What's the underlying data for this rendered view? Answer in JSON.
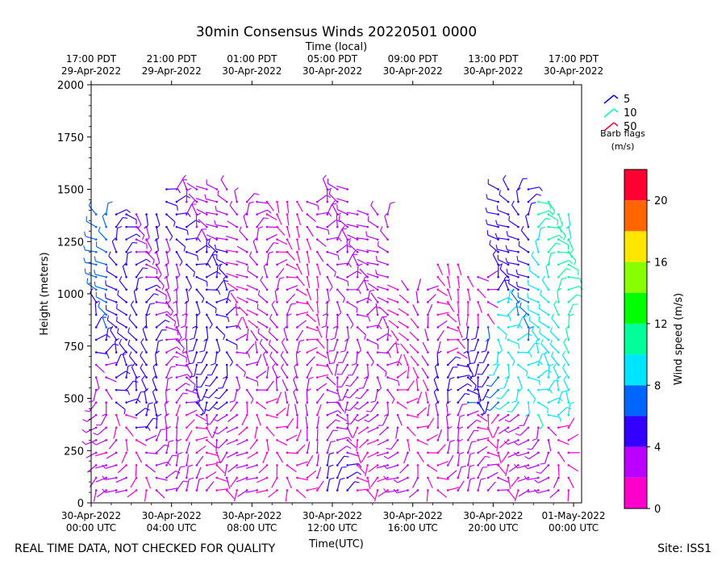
{
  "chart_data": {
    "type": "wind-barb",
    "title": "30min Consensus Winds 20220501 0000",
    "xlabel": "Time(UTC)",
    "top_xlabel": "Time (local)",
    "ylabel": "Height (meters)",
    "x_range_hours_utc": [
      0,
      24.4
    ],
    "ylim": [
      0,
      2000
    ],
    "y_ticks": [
      0,
      250,
      500,
      750,
      1000,
      1250,
      1500,
      1750,
      2000
    ],
    "x_ticks": [
      {
        "hour": 0,
        "line1": "30-Apr-2022",
        "line2": "00:00 UTC"
      },
      {
        "hour": 4,
        "line1": "30-Apr-2022",
        "line2": "04:00 UTC"
      },
      {
        "hour": 8,
        "line1": "30-Apr-2022",
        "line2": "08:00 UTC"
      },
      {
        "hour": 12,
        "line1": "30-Apr-2022",
        "line2": "12:00 UTC"
      },
      {
        "hour": 16,
        "line1": "30-Apr-2022",
        "line2": "16:00 UTC"
      },
      {
        "hour": 20,
        "line1": "30-Apr-2022",
        "line2": "20:00 UTC"
      },
      {
        "hour": 24,
        "line1": "01-May-2022",
        "line2": "00:00 UTC"
      }
    ],
    "top_ticks": [
      {
        "hour": 0,
        "line1": "17:00 PDT",
        "line2": "29-Apr-2022"
      },
      {
        "hour": 4,
        "line1": "21:00 PDT",
        "line2": "29-Apr-2022"
      },
      {
        "hour": 8,
        "line1": "01:00 PDT",
        "line2": "30-Apr-2022"
      },
      {
        "hour": 12,
        "line1": "05:00 PDT",
        "line2": "30-Apr-2022"
      },
      {
        "hour": 16,
        "line1": "09:00 PDT",
        "line2": "30-Apr-2022"
      },
      {
        "hour": 20,
        "line1": "13:00 PDT",
        "line2": "30-Apr-2022"
      },
      {
        "hour": 24,
        "line1": "17:00 PDT",
        "line2": "30-Apr-2022"
      }
    ],
    "barb_legend": {
      "title_line1": "Barb flags",
      "title_line2": "(m/s)",
      "items": [
        {
          "label": "5",
          "color": "#0000ff"
        },
        {
          "label": "10",
          "color": "#00ffaa"
        },
        {
          "label": "50",
          "color": "#ff0033"
        }
      ]
    },
    "colorbar": {
      "label": "Wind speed (m/s)",
      "min": 0,
      "max": 22,
      "ticks": [
        0,
        4,
        8,
        12,
        16,
        20
      ],
      "bins": [
        {
          "from": 0,
          "to": 2,
          "color": "#ff00cc"
        },
        {
          "from": 2,
          "to": 4,
          "color": "#bb00ff"
        },
        {
          "from": 4,
          "to": 6,
          "color": "#3300ff"
        },
        {
          "from": 6,
          "to": 8,
          "color": "#0066ff"
        },
        {
          "from": 8,
          "to": 10,
          "color": "#00e5ff"
        },
        {
          "from": 10,
          "to": 12,
          "color": "#00ff99"
        },
        {
          "from": 12,
          "to": 14,
          "color": "#00ff00"
        },
        {
          "from": 14,
          "to": 16,
          "color": "#88ff00"
        },
        {
          "from": 16,
          "to": 18,
          "color": "#ffe600"
        },
        {
          "from": 18,
          "to": 20,
          "color": "#ff6600"
        },
        {
          "from": 20,
          "to": 22,
          "color": "#ff0033"
        }
      ]
    },
    "profile_interval_hours": 0.5,
    "speed_profiles_ms": [
      {
        "hour": 0.5,
        "top_m": 1400,
        "layers": [
          [
            0,
            300,
            1.5
          ],
          [
            300,
            700,
            3.0
          ],
          [
            700,
            1400,
            6.5
          ]
        ]
      },
      {
        "hour": 1.5,
        "top_m": 1400,
        "layers": [
          [
            0,
            450,
            2.5
          ],
          [
            450,
            1350,
            5.0
          ]
        ]
      },
      {
        "hour": 2.5,
        "top_m": 1400,
        "layers": [
          [
            0,
            350,
            2.5
          ],
          [
            350,
            1300,
            4.5
          ]
        ]
      },
      {
        "hour": 4.0,
        "top_m": 1550,
        "layers": [
          [
            0,
            450,
            2.0
          ],
          [
            450,
            1500,
            3.5
          ]
        ]
      },
      {
        "hour": 5.5,
        "top_m": 1500,
        "layers": [
          [
            0,
            450,
            2.5
          ],
          [
            450,
            1250,
            5.0
          ],
          [
            1250,
            1500,
            3.0
          ]
        ]
      },
      {
        "hour": 8.0,
        "top_m": 1450,
        "layers": [
          [
            0,
            500,
            1.5
          ],
          [
            500,
            800,
            3.0
          ],
          [
            800,
            1450,
            2.0
          ]
        ]
      },
      {
        "hour": 10.5,
        "top_m": 1450,
        "layers": [
          [
            0,
            450,
            1.5
          ],
          [
            450,
            1450,
            2.0
          ]
        ]
      },
      {
        "hour": 12.0,
        "top_m": 1500,
        "layers": [
          [
            0,
            200,
            4.5
          ],
          [
            200,
            1200,
            3.0
          ]
        ]
      },
      {
        "hour": 14.0,
        "top_m": 1400,
        "layers": [
          [
            0,
            400,
            1.5
          ],
          [
            400,
            1100,
            3.0
          ]
        ]
      },
      {
        "hour": 16.0,
        "top_m": 1050,
        "layers": [
          [
            0,
            700,
            2.0
          ],
          [
            700,
            1050,
            1.5
          ]
        ]
      },
      {
        "hour": 17.5,
        "top_m": 1150,
        "layers": [
          [
            0,
            450,
            2.5
          ],
          [
            450,
            700,
            4.5
          ],
          [
            700,
            1150,
            1.5
          ]
        ]
      },
      {
        "hour": 19.0,
        "top_m": 1100,
        "layers": [
          [
            0,
            450,
            2.0
          ],
          [
            450,
            850,
            6.0
          ],
          [
            850,
            1100,
            1.5
          ]
        ]
      },
      {
        "hour": 21.0,
        "top_m": 1500,
        "layers": [
          [
            0,
            450,
            2.5
          ],
          [
            450,
            1000,
            8.0
          ],
          [
            1000,
            1450,
            5.0
          ]
        ]
      },
      {
        "hour": 22.5,
        "top_m": 1450,
        "layers": [
          [
            0,
            400,
            2.0
          ],
          [
            400,
            1400,
            9.5
          ]
        ]
      },
      {
        "hour": 23.5,
        "top_m": 1400,
        "layers": [
          [
            0,
            400,
            1.5
          ],
          [
            400,
            1200,
            10.0
          ]
        ]
      }
    ]
  },
  "footer": {
    "left": "REAL TIME DATA, NOT CHECKED FOR QUALITY",
    "right": "Site: ISS1"
  }
}
